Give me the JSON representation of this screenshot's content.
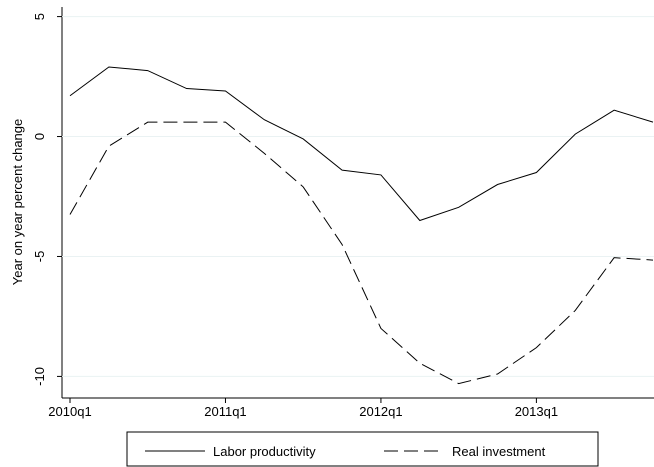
{
  "chart_data": {
    "type": "line",
    "categories": [
      "2010q1",
      null,
      null,
      null,
      "2011q1",
      null,
      null,
      null,
      "2012q1",
      null,
      null,
      null,
      "2013q1",
      null,
      null,
      null
    ],
    "y_label": "Year on year percent change",
    "ylim": [
      -10.9,
      5.4
    ],
    "yticks": [
      -10,
      -5,
      0,
      5
    ],
    "grid": true,
    "legend": "bottom",
    "series": [
      {
        "name": "Labor productivity",
        "color": "#000000",
        "line_style": "solid",
        "values": [
          1.7,
          2.9,
          2.75,
          2.0,
          1.9,
          0.7,
          -0.1,
          -1.4,
          -1.6,
          -3.5,
          -2.95,
          -2.0,
          -1.5,
          0.1,
          1.1,
          0.6
        ]
      },
      {
        "name": "Real investment",
        "color": "#000000",
        "line_style": "dashed",
        "values": [
          -3.25,
          -0.4,
          0.6,
          0.6,
          0.6,
          -0.7,
          -2.1,
          -4.5,
          -8.0,
          -9.45,
          -10.3,
          -9.9,
          -8.8,
          -7.25,
          -5.05,
          -5.15
        ]
      }
    ]
  }
}
